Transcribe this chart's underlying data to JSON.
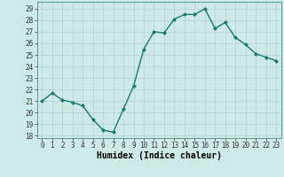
{
  "x": [
    0,
    1,
    2,
    3,
    4,
    5,
    6,
    7,
    8,
    9,
    10,
    11,
    12,
    13,
    14,
    15,
    16,
    17,
    18,
    19,
    20,
    21,
    22,
    23
  ],
  "y": [
    21.0,
    21.7,
    21.1,
    20.9,
    20.6,
    19.4,
    18.5,
    18.3,
    20.3,
    22.3,
    25.5,
    27.0,
    26.9,
    28.1,
    28.5,
    28.5,
    29.0,
    27.3,
    27.8,
    26.5,
    25.9,
    25.1,
    24.8,
    24.5
  ],
  "line_color": "#1a7a6a",
  "marker": "D",
  "marker_size": 2.0,
  "bg_color": "#ceeae7",
  "grid_color": "#b0d4d0",
  "xlabel": "Humidex (Indice chaleur)",
  "xlim": [
    -0.5,
    23.5
  ],
  "ylim": [
    17.8,
    29.6
  ],
  "yticks": [
    18,
    19,
    20,
    21,
    22,
    23,
    24,
    25,
    26,
    27,
    28,
    29
  ],
  "xticks": [
    0,
    1,
    2,
    3,
    4,
    5,
    6,
    7,
    8,
    9,
    10,
    11,
    12,
    13,
    14,
    15,
    16,
    17,
    18,
    19,
    20,
    21,
    22,
    23
  ],
  "tick_fontsize": 5.5,
  "xlabel_fontsize": 7.0,
  "line_width": 1.0
}
